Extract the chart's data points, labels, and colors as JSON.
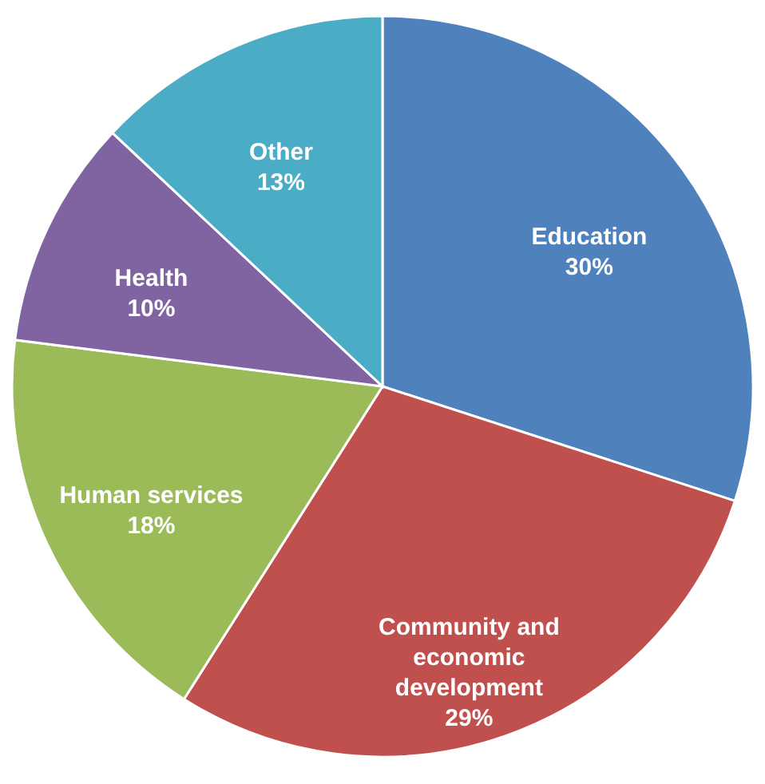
{
  "chart_data": {
    "type": "pie",
    "categories": [
      "Education",
      "Community and economic development",
      "Human services",
      "Health",
      "Other"
    ],
    "values": [
      30,
      29,
      18,
      10,
      13
    ],
    "colors": [
      "#4f81bd",
      "#c0504d",
      "#9bbb59",
      "#8064a2",
      "#4bacc6"
    ],
    "value_labels": [
      "30%",
      "29%",
      "18%",
      "10%",
      "13%"
    ],
    "legend": false
  }
}
